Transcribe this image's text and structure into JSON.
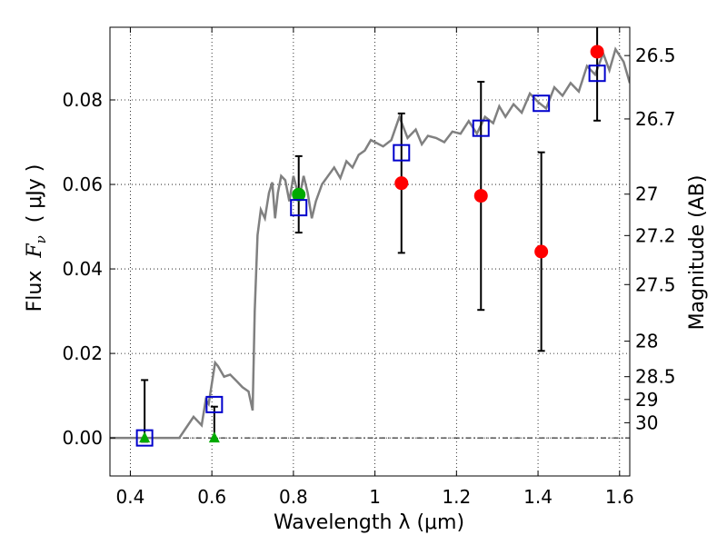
{
  "chart_data": {
    "type": "scatter",
    "xlabel": "Wavelength  λ (μm)",
    "ylabel": "Flux  F_ν  ( μJy )",
    "ylabel_parts": {
      "pre": "Flux  ",
      "sym": "F",
      "sub": "ν",
      "post": "  ( μJy )"
    },
    "y2label": "Magnitude (AB)",
    "xlim": [
      0.35,
      1.625
    ],
    "ylim": [
      -0.009,
      0.0972
    ],
    "grid": true,
    "x_ticks": [
      {
        "value": 0.4,
        "label": "0.4"
      },
      {
        "value": 0.6,
        "label": "0.6"
      },
      {
        "value": 0.8,
        "label": "0.8"
      },
      {
        "value": 1.0,
        "label": "1"
      },
      {
        "value": 1.2,
        "label": "1.2"
      },
      {
        "value": 1.4,
        "label": "1.4"
      },
      {
        "value": 1.6,
        "label": "1.6"
      }
    ],
    "y_ticks": [
      {
        "value": 0.0,
        "label": "0.00"
      },
      {
        "value": 0.02,
        "label": "0.02"
      },
      {
        "value": 0.04,
        "label": "0.04"
      },
      {
        "value": 0.06,
        "label": "0.06"
      },
      {
        "value": 0.08,
        "label": "0.08"
      }
    ],
    "mag_ticks": [
      {
        "flux": 0.0905,
        "label": "26.5"
      },
      {
        "flux": 0.0755,
        "label": "26.7"
      },
      {
        "flux": 0.0577,
        "label": "27"
      },
      {
        "flux": 0.0479,
        "label": "27.2"
      },
      {
        "flux": 0.0363,
        "label": "27.5"
      },
      {
        "flux": 0.0229,
        "label": "28"
      },
      {
        "flux": 0.0145,
        "label": "28.5"
      },
      {
        "flux": 0.0091,
        "label": "29"
      },
      {
        "flux": 0.0036,
        "label": "30"
      }
    ],
    "zero_line": {
      "y": 0.0,
      "style": "dash-dot"
    },
    "series": [
      {
        "name": "model SED",
        "kind": "line",
        "color": "#808080",
        "x": [
          0.35,
          0.43,
          0.52,
          0.555,
          0.575,
          0.585,
          0.592,
          0.6,
          0.608,
          0.615,
          0.63,
          0.645,
          0.66,
          0.675,
          0.69,
          0.7,
          0.705,
          0.712,
          0.72,
          0.73,
          0.74,
          0.748,
          0.755,
          0.762,
          0.77,
          0.78,
          0.79,
          0.8,
          0.808,
          0.815,
          0.825,
          0.835,
          0.845,
          0.855,
          0.87,
          0.885,
          0.9,
          0.915,
          0.93,
          0.945,
          0.96,
          0.975,
          0.99,
          1.0,
          1.02,
          1.04,
          1.06,
          1.08,
          1.1,
          1.115,
          1.13,
          1.15,
          1.17,
          1.19,
          1.21,
          1.23,
          1.25,
          1.27,
          1.29,
          1.305,
          1.32,
          1.34,
          1.36,
          1.38,
          1.4,
          1.42,
          1.44,
          1.46,
          1.48,
          1.5,
          1.52,
          1.54,
          1.56,
          1.575,
          1.59,
          1.61,
          1.625
        ],
        "y": [
          0.0,
          0.0,
          0.0,
          0.005,
          0.003,
          0.009,
          0.008,
          0.013,
          0.0178,
          0.017,
          0.0145,
          0.015,
          0.0135,
          0.012,
          0.011,
          0.0065,
          0.03,
          0.048,
          0.054,
          0.052,
          0.058,
          0.0605,
          0.052,
          0.058,
          0.062,
          0.061,
          0.056,
          0.062,
          0.059,
          0.057,
          0.062,
          0.058,
          0.052,
          0.056,
          0.06,
          0.062,
          0.064,
          0.0615,
          0.0655,
          0.064,
          0.067,
          0.068,
          0.0705,
          0.07,
          0.069,
          0.0705,
          0.076,
          0.071,
          0.073,
          0.0695,
          0.0715,
          0.071,
          0.07,
          0.0725,
          0.072,
          0.075,
          0.072,
          0.076,
          0.0745,
          0.0785,
          0.076,
          0.079,
          0.077,
          0.0815,
          0.0795,
          0.078,
          0.083,
          0.081,
          0.084,
          0.082,
          0.088,
          0.086,
          0.091,
          0.087,
          0.092,
          0.089,
          0.084
        ]
      },
      {
        "name": "measured flux (red)",
        "kind": "points",
        "marker": "circle",
        "color": "#ff0000",
        "points": [
          {
            "x": 1.065,
            "y": 0.0603,
            "err_lo": 0.0438,
            "err_hi": 0.0768
          },
          {
            "x": 1.26,
            "y": 0.0573,
            "err_lo": 0.0303,
            "err_hi": 0.0843
          },
          {
            "x": 1.408,
            "y": 0.0441,
            "err_lo": 0.0206,
            "err_hi": 0.0676
          },
          {
            "x": 1.545,
            "y": 0.0914,
            "err_lo": 0.0751,
            "err_hi": 0.0972
          }
        ]
      },
      {
        "name": "measured flux (green)",
        "kind": "points",
        "marker": "circle",
        "color": "#00aa00",
        "points": [
          {
            "x": 0.813,
            "y": 0.0576,
            "err_lo": 0.0486,
            "err_hi": 0.0667
          }
        ]
      },
      {
        "name": "upper limits (green)",
        "kind": "points",
        "marker": "triangle",
        "color": "#00aa00",
        "points": [
          {
            "x": 0.435,
            "y": 0.0,
            "err_lo": -0.0009,
            "err_hi": 0.0137
          },
          {
            "x": 0.606,
            "y": 0.0,
            "err_lo": -0.0002,
            "err_hi": 0.0074
          }
        ]
      },
      {
        "name": "model photometry",
        "kind": "points",
        "marker": "square",
        "color": "#0000cc",
        "points": [
          {
            "x": 0.435,
            "y": 0.0
          },
          {
            "x": 0.606,
            "y": 0.0079
          },
          {
            "x": 0.813,
            "y": 0.0545
          },
          {
            "x": 1.065,
            "y": 0.0675
          },
          {
            "x": 1.26,
            "y": 0.0733
          },
          {
            "x": 1.408,
            "y": 0.0792
          },
          {
            "x": 1.545,
            "y": 0.0863
          }
        ]
      }
    ]
  }
}
